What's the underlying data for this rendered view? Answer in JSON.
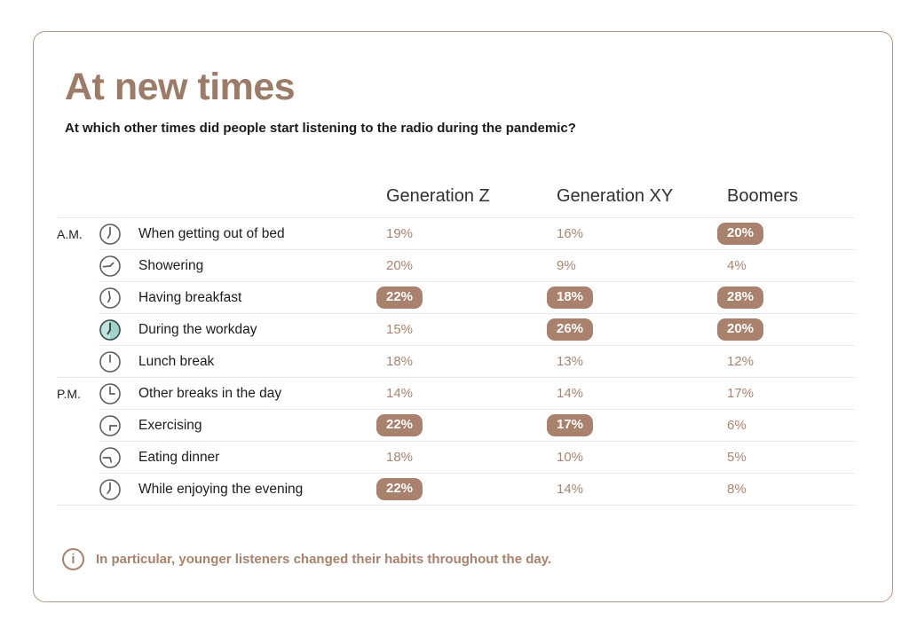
{
  "chart_data": {
    "type": "table",
    "title": "At new times",
    "subtitle": "At which other times did people start listening to the radio during the pandemic?",
    "columns": [
      "Generation Z",
      "Generation XY",
      "Boomers"
    ],
    "note": "In particular, younger listeners changed their habits throughout the day.",
    "period_labels": [
      "A.M.",
      "P.M."
    ],
    "rows": [
      {
        "period": "A.M.",
        "label": "When getting out of bed",
        "icon": {
          "name": "clock-icon",
          "minute": 0,
          "hour": 210,
          "filled": false
        },
        "values": [
          {
            "text": "19%",
            "highlighted": false
          },
          {
            "text": "16%",
            "highlighted": false
          },
          {
            "text": "20%",
            "highlighted": true
          }
        ]
      },
      {
        "period": "",
        "label": "Showering",
        "icon": {
          "name": "clock-icon",
          "minute": 265,
          "hour": 45,
          "filled": false
        },
        "values": [
          {
            "text": "20%",
            "highlighted": false
          },
          {
            "text": "9%",
            "highlighted": false
          },
          {
            "text": "4%",
            "highlighted": false
          }
        ]
      },
      {
        "period": "",
        "label": "Having breakfast",
        "icon": {
          "name": "clock-icon",
          "minute": 350,
          "hour": 205,
          "filled": false
        },
        "values": [
          {
            "text": "22%",
            "highlighted": true
          },
          {
            "text": "18%",
            "highlighted": true
          },
          {
            "text": "28%",
            "highlighted": true
          }
        ]
      },
      {
        "period": "",
        "label": "During the workday",
        "icon": {
          "name": "clock-icon",
          "minute": 0,
          "hour": 210,
          "filled": true
        },
        "values": [
          {
            "text": "15%",
            "highlighted": false
          },
          {
            "text": "26%",
            "highlighted": true
          },
          {
            "text": "20%",
            "highlighted": true
          }
        ]
      },
      {
        "period": "",
        "label": "Lunch break",
        "icon": {
          "name": "clock-icon",
          "minute": 0,
          "hour": 0,
          "filled": false
        },
        "values": [
          {
            "text": "18%",
            "highlighted": false
          },
          {
            "text": "13%",
            "highlighted": false
          },
          {
            "text": "12%",
            "highlighted": false
          }
        ]
      },
      {
        "period": "P.M.",
        "label": "Other breaks in the day",
        "icon": {
          "name": "clock-icon",
          "minute": 0,
          "hour": 90,
          "filled": false
        },
        "values": [
          {
            "text": "14%",
            "highlighted": false
          },
          {
            "text": "14%",
            "highlighted": false
          },
          {
            "text": "17%",
            "highlighted": false
          }
        ]
      },
      {
        "period": "",
        "label": "Exercising",
        "icon": {
          "name": "clock-icon",
          "minute": 90,
          "hour": 180,
          "filled": false
        },
        "values": [
          {
            "text": "22%",
            "highlighted": true
          },
          {
            "text": "17%",
            "highlighted": true
          },
          {
            "text": "6%",
            "highlighted": false
          }
        ]
      },
      {
        "period": "",
        "label": "Eating dinner",
        "icon": {
          "name": "clock-icon",
          "minute": 270,
          "hour": 165,
          "filled": false
        },
        "values": [
          {
            "text": "18%",
            "highlighted": false
          },
          {
            "text": "10%",
            "highlighted": false
          },
          {
            "text": "5%",
            "highlighted": false
          }
        ]
      },
      {
        "period": "",
        "label": "While enjoying the evening",
        "icon": {
          "name": "clock-icon",
          "minute": 0,
          "hour": 215,
          "filled": false
        },
        "values": [
          {
            "text": "22%",
            "highlighted": true
          },
          {
            "text": "14%",
            "highlighted": false
          },
          {
            "text": "8%",
            "highlighted": false
          }
        ]
      }
    ]
  },
  "note_icon": "info-icon",
  "colors": {
    "accent_brown": "#9c7b69",
    "value_brown": "#aa8471",
    "badge_bg": "#a8826d",
    "badge_text": "#ffffff",
    "note_brown": "#a8826d",
    "card_border": "#b59682",
    "divider": "#e7e7e7",
    "text_dark": "#1c1c1c",
    "header_text": "#303030",
    "clock_stroke": "#5f5f5f",
    "clock_fill": "#bfe3df",
    "clock_fill_dark": "#a2d2cc",
    "clock_hands_dark": "#3d4a49"
  }
}
